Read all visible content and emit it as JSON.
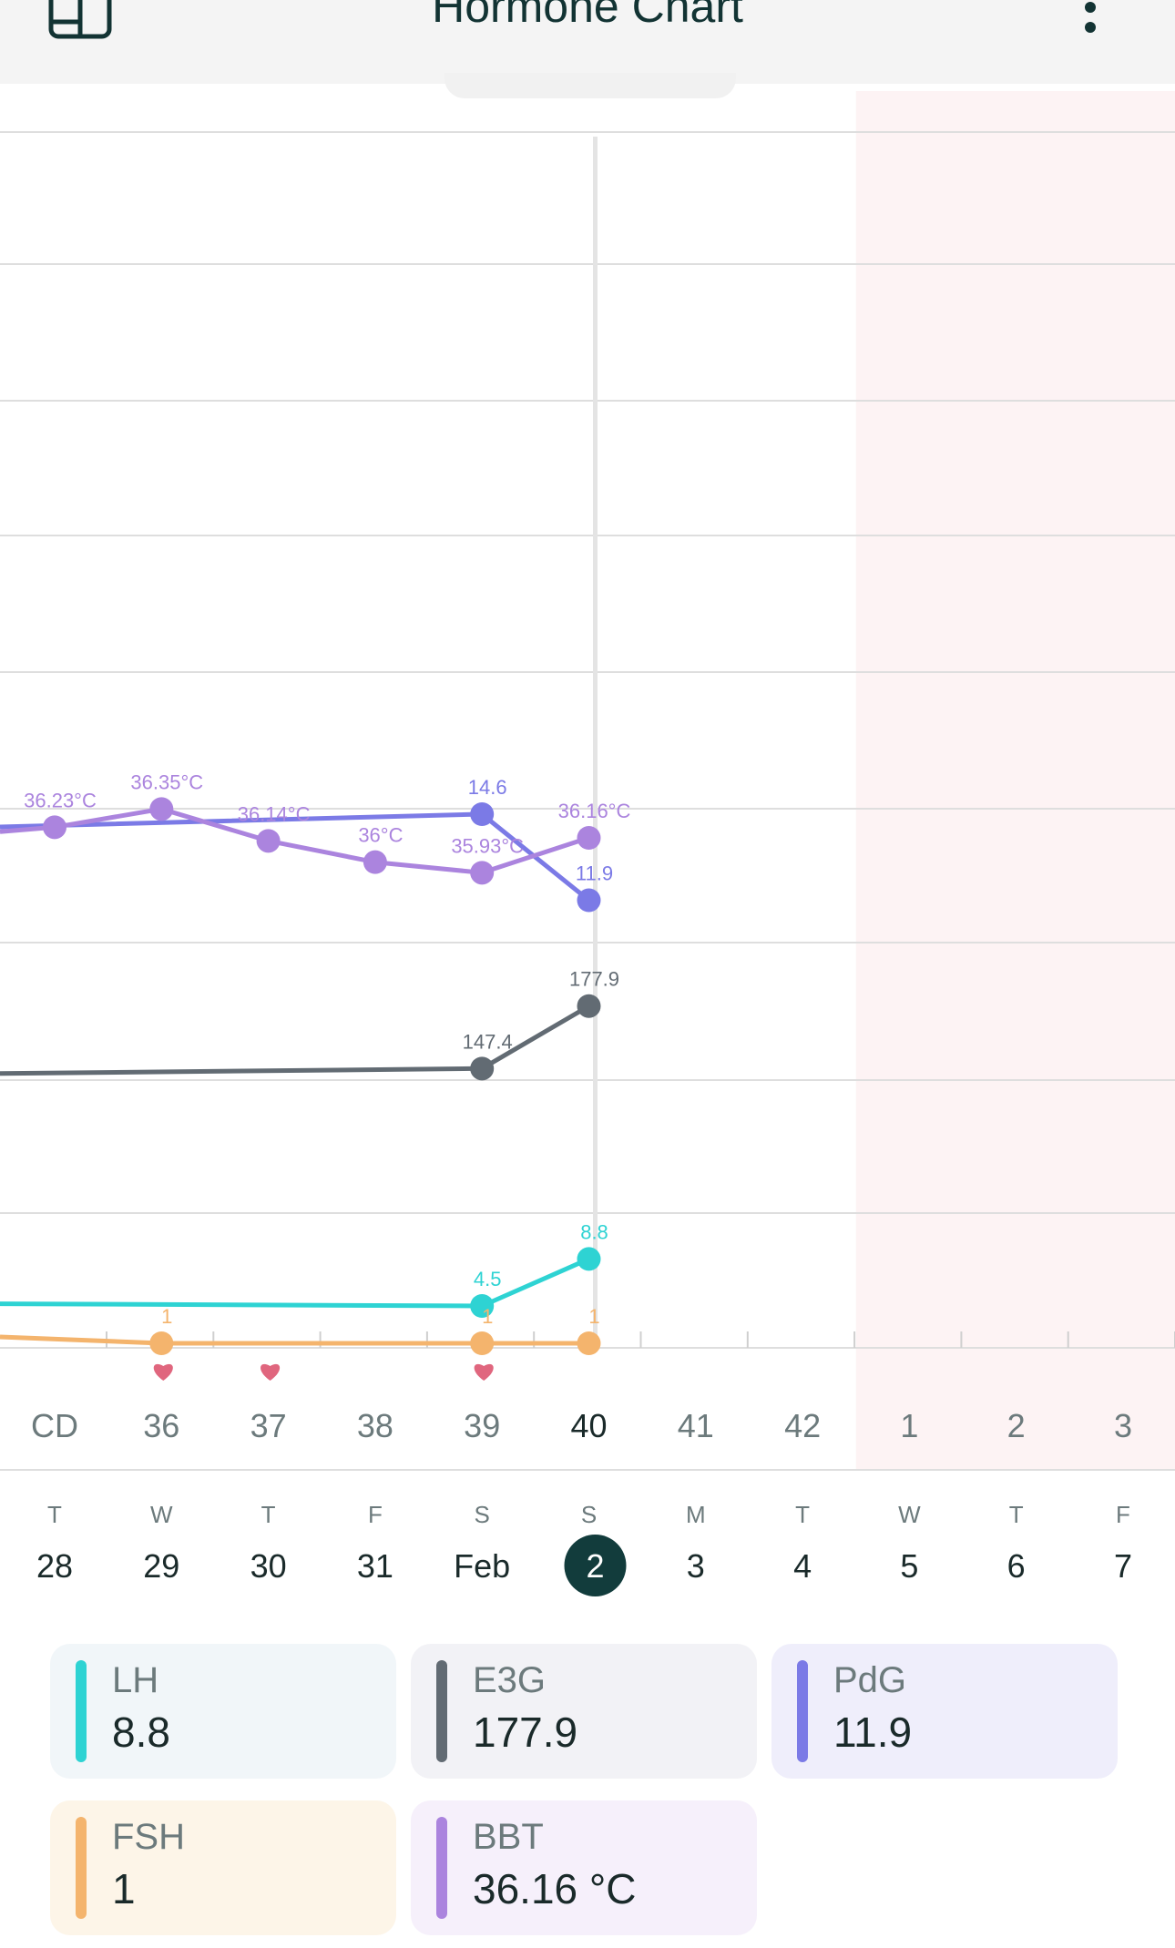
{
  "header": {
    "title": "Hormone Chart",
    "sidebar_icon": "sidebar-toggle-icon",
    "more_icon": "more-vertical-icon"
  },
  "colors": {
    "lh": "#2ed3d3",
    "e3g": "#626b73",
    "pdg": "#7b7ae6",
    "fsh": "#f4b46d",
    "bbt": "#ab84de",
    "period_shade": "#fdf3f4",
    "heart": "#e0667e",
    "selected_day": "#123c3c"
  },
  "cycle_days": [
    "CD",
    "36",
    "37",
    "38",
    "39",
    "40",
    "41",
    "42",
    "1",
    "2",
    "3"
  ],
  "weekdays": [
    "T",
    "W",
    "T",
    "F",
    "S",
    "S",
    "M",
    "T",
    "W",
    "T",
    "F"
  ],
  "dates": [
    "28",
    "29",
    "30",
    "31",
    "Feb",
    "2",
    "3",
    "4",
    "5",
    "6",
    "7"
  ],
  "selected_date": "2",
  "chart_data": {
    "type": "line",
    "categories": [
      "28",
      "29",
      "30",
      "31",
      "Feb",
      "2"
    ],
    "series": [
      {
        "name": "PdG",
        "values": [
          null,
          null,
          null,
          null,
          14.6,
          11.9
        ],
        "point_labels": [
          "",
          "",
          "",
          "",
          "14.6",
          "11.9"
        ]
      },
      {
        "name": "BBT",
        "values": [
          36.23,
          36.35,
          36.14,
          36.0,
          35.93,
          36.16
        ],
        "point_labels": [
          "36.23°C",
          "36.35°C",
          "36.14°C",
          "36°C",
          "35.93°C",
          "36.16°C"
        ]
      },
      {
        "name": "E3G",
        "values": [
          null,
          null,
          null,
          null,
          147.4,
          177.9
        ],
        "point_labels": [
          "",
          "",
          "",
          "",
          "147.4",
          "177.9"
        ]
      },
      {
        "name": "LH",
        "values": [
          null,
          null,
          null,
          null,
          4.5,
          8.8
        ],
        "point_labels": [
          "",
          "",
          "",
          "",
          "4.5",
          "8.8"
        ]
      },
      {
        "name": "FSH",
        "values": [
          null,
          1,
          null,
          null,
          1,
          1
        ],
        "point_labels": [
          "",
          "1",
          "",
          "",
          "1",
          "1"
        ]
      }
    ],
    "intercourse_days": [
      "29",
      "30",
      "Feb"
    ],
    "period_days": [
      "5",
      "6",
      "7"
    ]
  },
  "legend": [
    {
      "name": "LH",
      "value": "8.8",
      "color": "#2ed3d3",
      "bg": "#f1f6f9"
    },
    {
      "name": "E3G",
      "value": "177.9",
      "color": "#626b73",
      "bg": "#f2f2f6"
    },
    {
      "name": "PdG",
      "value": "11.9",
      "color": "#7b7ae6",
      "bg": "#efeefb"
    },
    {
      "name": "FSH",
      "value": "1",
      "color": "#f4b46d",
      "bg": "#fdf5e8"
    },
    {
      "name": "BBT",
      "value": "36.16 °C",
      "color": "#ab84de",
      "bg": "#f6f0fb"
    }
  ]
}
